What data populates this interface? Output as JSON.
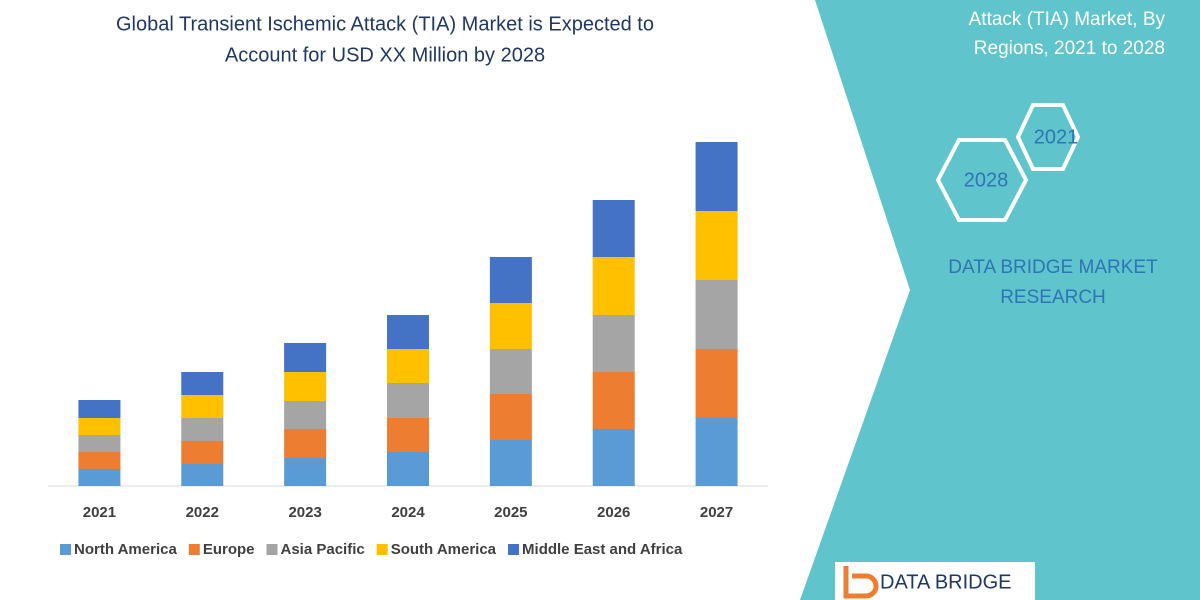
{
  "chart_data": {
    "type": "stacked_bar",
    "title": [
      "Global Transient Ischemic Attack (TIA) Market is Expected to",
      "Account for USD XX Million by 2028"
    ],
    "categories": [
      "2021",
      "2022",
      "2023",
      "2024",
      "2025",
      "2026",
      "2027"
    ],
    "series": [
      {
        "name": "North America",
        "color": "#5b9bd5",
        "values": [
          17,
          22,
          28,
          34,
          46,
          57,
          68
        ]
      },
      {
        "name": "Europe",
        "color": "#ed7d31",
        "values": [
          17,
          23,
          29,
          34,
          46,
          57,
          69
        ]
      },
      {
        "name": "Asia Pacific",
        "color": "#a5a5a5",
        "values": [
          17,
          23,
          28,
          35,
          45,
          57,
          69
        ]
      },
      {
        "name": "South America",
        "color": "#ffc000",
        "values": [
          17,
          23,
          29,
          34,
          46,
          58,
          69
        ]
      },
      {
        "name": "Middle East and Africa",
        "color": "#4472c4",
        "values": [
          18,
          23,
          29,
          34,
          46,
          57,
          69
        ]
      }
    ],
    "ylim": [
      0,
      344
    ],
    "legend": "bottom"
  },
  "panel": {
    "heading": [
      "Attack (TIA) Market, By",
      "Regions, 2021 to 2028"
    ],
    "hexagons": [
      "2021",
      "2028"
    ],
    "brand": [
      "DATA BRIDGE MARKET",
      "RESEARCH"
    ],
    "logo": "DATA BRIDGE"
  }
}
